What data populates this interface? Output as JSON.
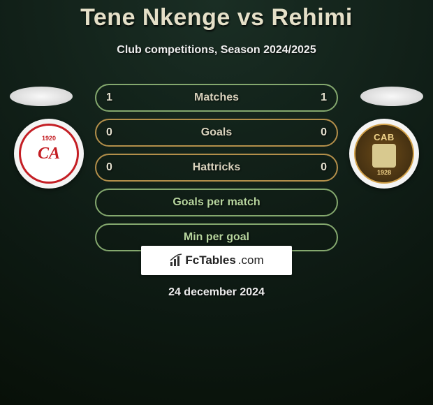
{
  "title": "Tene Nkenge vs Rehimi",
  "subtitle": "Club competitions, Season 2024/2025",
  "date": "24 december 2024",
  "footer_brand_strong": "FcTables",
  "footer_brand_rest": ".com",
  "badge_left": {
    "year": "1920",
    "monogram": "CA",
    "bg": "#ffffff",
    "border": "#c41e24"
  },
  "badge_right": {
    "top": "CAB",
    "year": "1928",
    "bg": "#6b4a18",
    "accent": "#d3a24a"
  },
  "rows": [
    {
      "label": "Matches",
      "left": "1",
      "right": "1",
      "border": "#84a86e",
      "label_color": "#d8d2bc"
    },
    {
      "label": "Goals",
      "left": "0",
      "right": "0",
      "border": "#b38f4a",
      "label_color": "#d8d2bc"
    },
    {
      "label": "Hattricks",
      "left": "0",
      "right": "0",
      "border": "#b38f4a",
      "label_color": "#d8d2bc"
    },
    {
      "label": "Goals per match",
      "left": "",
      "right": "",
      "border": "#84a86e",
      "label_color": "#b6d59e"
    },
    {
      "label": "Min per goal",
      "left": "",
      "right": "",
      "border": "#84a86e",
      "label_color": "#b6d59e"
    }
  ],
  "colors": {
    "title": "#e5e0c8",
    "bg_center": "#1a2e24",
    "bg_outer": "#081008"
  },
  "typography": {
    "title_fontsize": 34,
    "subtitle_fontsize": 16,
    "row_label_fontsize": 16,
    "date_fontsize": 16
  }
}
